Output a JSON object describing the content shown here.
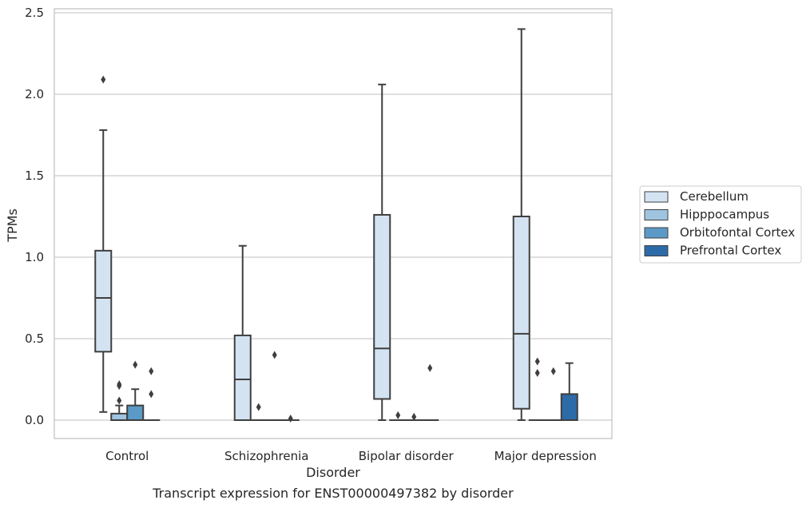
{
  "chart_data": {
    "type": "box",
    "title": "",
    "caption": "Transcript expression for ENST00000497382 by disorder",
    "xlabel": "Disorder",
    "ylabel": "TPMs",
    "ylim": [
      -0.12,
      2.53
    ],
    "yticks": [
      0.0,
      0.5,
      1.0,
      1.5,
      2.0,
      2.5
    ],
    "ytick_labels": [
      "0.0",
      "0.5",
      "1.0",
      "1.5",
      "2.0",
      "2.5"
    ],
    "categories": [
      "Control",
      "Schizophrenia",
      "Bipolar disorder",
      "Major depression"
    ],
    "grid": "horizontal",
    "legend_position": "right",
    "series": [
      {
        "name": "Cerebellum",
        "color": "#d4e3f2",
        "boxes": [
          {
            "q1": 0.42,
            "median": 0.75,
            "q3": 1.04,
            "whislo": 0.05,
            "whishi": 1.78,
            "fliers": [
              2.09
            ]
          },
          {
            "q1": 0.0,
            "median": 0.25,
            "q3": 0.52,
            "whislo": 0.0,
            "whishi": 1.07,
            "fliers": []
          },
          {
            "q1": 0.13,
            "median": 0.44,
            "q3": 1.26,
            "whislo": 0.0,
            "whishi": 2.06,
            "fliers": []
          },
          {
            "q1": 0.07,
            "median": 0.53,
            "q3": 1.25,
            "whislo": 0.0,
            "whishi": 2.4,
            "fliers": []
          }
        ]
      },
      {
        "name": "Hipppocampus",
        "color": "#9fc4e0",
        "boxes": [
          {
            "q1": 0.0,
            "median": 0.0,
            "q3": 0.04,
            "whislo": 0.0,
            "whishi": 0.09,
            "fliers": [
              0.12,
              0.21,
              0.22
            ]
          },
          {
            "q1": 0.0,
            "median": 0.0,
            "q3": 0.0,
            "whislo": 0.0,
            "whishi": 0.0,
            "fliers": [
              0.08
            ]
          },
          {
            "q1": 0.0,
            "median": 0.0,
            "q3": 0.0,
            "whislo": 0.0,
            "whishi": 0.0,
            "fliers": [
              0.03
            ]
          },
          {
            "q1": 0.0,
            "median": 0.0,
            "q3": 0.0,
            "whislo": 0.0,
            "whishi": 0.0,
            "fliers": [
              0.29,
              0.36
            ]
          }
        ]
      },
      {
        "name": "Orbitofontal Cortex",
        "color": "#5b9ac6",
        "boxes": [
          {
            "q1": 0.0,
            "median": 0.0,
            "q3": 0.09,
            "whislo": 0.0,
            "whishi": 0.19,
            "fliers": [
              0.34
            ]
          },
          {
            "q1": 0.0,
            "median": 0.0,
            "q3": 0.0,
            "whislo": 0.0,
            "whishi": 0.0,
            "fliers": [
              0.4
            ]
          },
          {
            "q1": 0.0,
            "median": 0.0,
            "q3": 0.0,
            "whislo": 0.0,
            "whishi": 0.0,
            "fliers": [
              0.02
            ]
          },
          {
            "q1": 0.0,
            "median": 0.0,
            "q3": 0.0,
            "whislo": 0.0,
            "whishi": 0.0,
            "fliers": [
              0.3
            ]
          }
        ]
      },
      {
        "name": "Prefrontal Cortex",
        "color": "#2d6aa8",
        "boxes": [
          {
            "q1": 0.0,
            "median": 0.0,
            "q3": 0.0,
            "whislo": 0.0,
            "whishi": 0.0,
            "fliers": [
              0.16,
              0.3
            ]
          },
          {
            "q1": 0.0,
            "median": 0.0,
            "q3": 0.0,
            "whislo": 0.0,
            "whishi": 0.0,
            "fliers": [
              0.01
            ]
          },
          {
            "q1": 0.0,
            "median": 0.0,
            "q3": 0.0,
            "whislo": 0.0,
            "whishi": 0.0,
            "fliers": [
              0.32
            ]
          },
          {
            "q1": 0.0,
            "median": 0.0,
            "q3": 0.16,
            "whislo": 0.0,
            "whishi": 0.35,
            "fliers": []
          }
        ]
      }
    ]
  }
}
